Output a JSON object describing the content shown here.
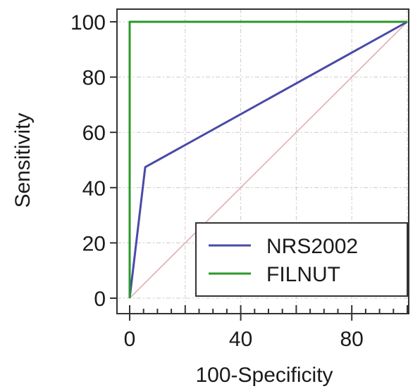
{
  "chart_data": {
    "type": "line",
    "title": "",
    "xlabel": "100-Specificity",
    "ylabel": "Sensitivity",
    "xlim": [
      0,
      100
    ],
    "ylim": [
      0,
      100
    ],
    "x_ticks": [
      0,
      40,
      80
    ],
    "x_minor_ticks": [
      0,
      5,
      10,
      15,
      20,
      25,
      30,
      35,
      40,
      45,
      50,
      55,
      60,
      65,
      70,
      75,
      80,
      85,
      90,
      95,
      100
    ],
    "y_ticks": [
      0,
      20,
      40,
      60,
      80,
      100
    ],
    "grid": true,
    "legend_position": "bottom-right",
    "reference_line": {
      "x": [
        0,
        100
      ],
      "y": [
        0,
        100
      ],
      "color": "#e0a8a8"
    },
    "series": [
      {
        "name": "NRS2002",
        "color": "#4a4aa8",
        "x": [
          0,
          5.6,
          100
        ],
        "y": [
          0,
          47.4,
          100
        ]
      },
      {
        "name": "FILNUT",
        "color": "#2a9a2a",
        "x": [
          0,
          0,
          100
        ],
        "y": [
          0,
          100,
          100
        ]
      }
    ]
  }
}
